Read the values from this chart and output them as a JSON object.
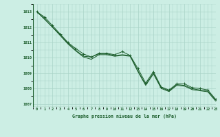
{
  "title": "Graphe pression niveau de la mer (hPa)",
  "bg_color": "#cceee4",
  "grid_color": "#aad4c8",
  "line_color": "#1a5c2a",
  "xlim": [
    -0.5,
    23
  ],
  "ylim": [
    1006.8,
    1013.5
  ],
  "yticks": [
    1007,
    1008,
    1009,
    1010,
    1011,
    1012,
    1013
  ],
  "xticks": [
    0,
    1,
    2,
    3,
    4,
    5,
    6,
    7,
    8,
    9,
    10,
    11,
    12,
    13,
    14,
    15,
    16,
    17,
    18,
    19,
    20,
    21,
    22,
    23
  ],
  "series1_x": [
    0,
    1,
    2,
    3,
    4,
    5,
    6,
    7,
    8,
    9,
    10,
    11,
    12,
    13,
    14,
    15,
    16,
    17,
    18,
    19,
    20,
    21,
    22,
    23
  ],
  "series1_y": [
    1013.0,
    1012.65,
    1012.1,
    1011.55,
    1011.0,
    1010.6,
    1010.25,
    1010.05,
    1010.3,
    1010.3,
    1010.2,
    1010.4,
    1010.15,
    1009.3,
    1008.35,
    1009.1,
    1008.1,
    1007.9,
    1008.3,
    1008.3,
    1008.05,
    1008.0,
    1007.9,
    1007.3
  ],
  "series2_x": [
    0,
    1,
    2,
    3,
    4,
    5,
    6,
    7,
    8,
    9,
    10,
    11,
    12,
    13,
    14,
    15,
    16,
    17,
    18,
    19,
    20,
    21,
    22,
    23
  ],
  "series2_y": [
    1013.0,
    1012.55,
    1012.0,
    1011.5,
    1010.95,
    1010.5,
    1010.1,
    1010.05,
    1010.25,
    1010.25,
    1010.15,
    1010.2,
    1010.15,
    1009.15,
    1008.25,
    1009.0,
    1008.05,
    1007.85,
    1008.25,
    1008.2,
    1007.98,
    1007.9,
    1007.82,
    1007.25
  ],
  "series3_x": [
    0,
    1,
    2,
    3,
    4,
    5,
    6,
    7,
    8,
    9,
    10,
    11,
    12,
    13,
    14,
    15,
    16,
    17,
    18,
    19,
    20,
    21,
    22,
    23
  ],
  "series3_y": [
    1013.0,
    1012.5,
    1012.0,
    1011.45,
    1010.9,
    1010.45,
    1010.05,
    1009.9,
    1010.2,
    1010.2,
    1010.1,
    1010.15,
    1010.1,
    1009.1,
    1008.2,
    1008.95,
    1008.0,
    1007.8,
    1008.2,
    1008.15,
    1007.92,
    1007.85,
    1007.78,
    1007.18
  ]
}
